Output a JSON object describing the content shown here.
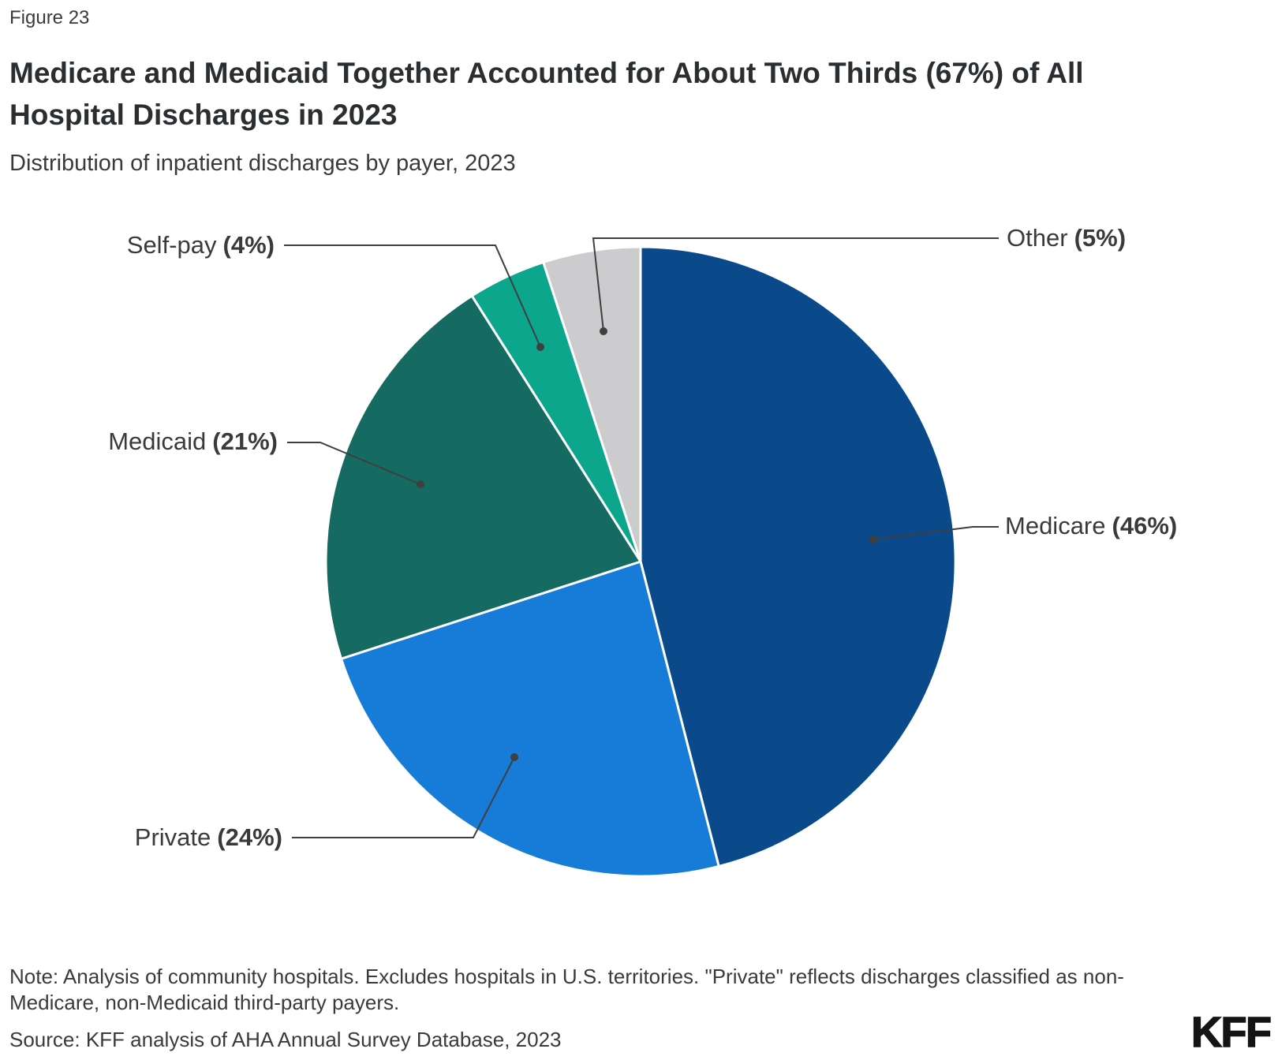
{
  "figure_label": "Figure 23",
  "title": "Medicare and Medicaid Together Accounted for About Two Thirds (67%) of All Hospital Discharges in 2023",
  "subtitle": "Distribution of inpatient discharges by payer, 2023",
  "note_lines": [
    "Note: Analysis of community hospitals. Excludes hospitals in U.S. territories. \"Private\" reflects discharges classified as non-",
    "Medicare, non-Medicaid third-party payers."
  ],
  "source": "Source: KFF analysis of AHA Annual Survey Database, 2023",
  "logo_text": "KFF",
  "colors": {
    "leader_line": "#3f3f3f",
    "title_text": "#2b2e31",
    "body_text": "#3a3a3a",
    "background": "#ffffff"
  },
  "chart_data": {
    "type": "pie",
    "title": "Distribution of inpatient discharges by payer, 2023",
    "unit": "percent of inpatient hospital discharges",
    "start_angle_deg": 0,
    "direction": "clockwise",
    "legend_position": "leader-line labels around pie",
    "slices": [
      {
        "id": "medicare",
        "name": "Medicare",
        "pct": "(46%)",
        "value": 46,
        "color": "#0a4a8b"
      },
      {
        "id": "private",
        "name": "Private",
        "pct": "(24%)",
        "value": 24,
        "color": "#177cd8"
      },
      {
        "id": "medicaid",
        "name": "Medicaid",
        "pct": "(21%)",
        "value": 21,
        "color": "#156b61"
      },
      {
        "id": "self-pay",
        "name": "Self-pay",
        "pct": "(4%)",
        "value": 4,
        "color": "#0ba68c"
      },
      {
        "id": "other",
        "name": "Other",
        "pct": "(5%)",
        "value": 5,
        "color": "#cccbcd"
      }
    ]
  }
}
